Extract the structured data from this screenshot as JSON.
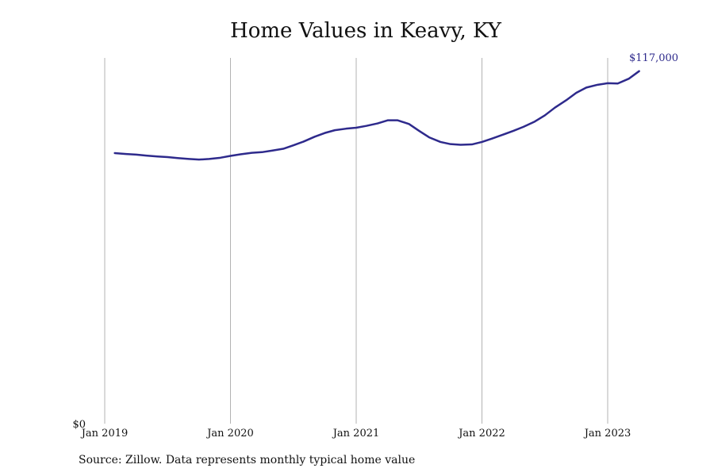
{
  "chart_data": {
    "type": "line",
    "title": "Home Values in Keavy, KY",
    "source": "Source: Zillow. Data represents monthly typical home value",
    "xlabel": "",
    "ylabel": "",
    "x_ticks": [
      {
        "label": "Jan 2019",
        "value": 2019.0
      },
      {
        "label": "Jan 2020",
        "value": 2020.0
      },
      {
        "label": "Jan 2021",
        "value": 2021.0
      },
      {
        "label": "Jan 2022",
        "value": 2022.0
      },
      {
        "label": "Jan 2023",
        "value": 2023.0
      }
    ],
    "xlim": [
      2018.92,
      2023.6
    ],
    "y_ticks": [
      {
        "label": "$0",
        "value": 0
      }
    ],
    "ylim": [
      0,
      117000
    ],
    "grid": {
      "x": true,
      "y": false
    },
    "end_label": "$117,000",
    "series": [
      {
        "color": "#2e2a8c",
        "points": [
          [
            2019.08,
            87500
          ],
          [
            2019.17,
            87200
          ],
          [
            2019.25,
            87000
          ],
          [
            2019.33,
            86700
          ],
          [
            2019.42,
            86400
          ],
          [
            2019.5,
            86200
          ],
          [
            2019.58,
            85900
          ],
          [
            2019.67,
            85600
          ],
          [
            2019.75,
            85400
          ],
          [
            2019.83,
            85600
          ],
          [
            2019.92,
            86000
          ],
          [
            2020.0,
            86600
          ],
          [
            2020.08,
            87100
          ],
          [
            2020.17,
            87600
          ],
          [
            2020.25,
            87800
          ],
          [
            2020.33,
            88300
          ],
          [
            2020.42,
            88900
          ],
          [
            2020.5,
            90000
          ],
          [
            2020.58,
            91200
          ],
          [
            2020.67,
            92800
          ],
          [
            2020.75,
            94000
          ],
          [
            2020.83,
            94900
          ],
          [
            2020.92,
            95400
          ],
          [
            2021.0,
            95700
          ],
          [
            2021.08,
            96300
          ],
          [
            2021.17,
            97100
          ],
          [
            2021.25,
            98100
          ],
          [
            2021.33,
            98100
          ],
          [
            2021.42,
            96900
          ],
          [
            2021.5,
            94700
          ],
          [
            2021.58,
            92600
          ],
          [
            2021.67,
            91100
          ],
          [
            2021.75,
            90400
          ],
          [
            2021.83,
            90200
          ],
          [
            2021.92,
            90300
          ],
          [
            2022.0,
            91100
          ],
          [
            2022.08,
            92200
          ],
          [
            2022.17,
            93500
          ],
          [
            2022.25,
            94700
          ],
          [
            2022.33,
            96000
          ],
          [
            2022.42,
            97700
          ],
          [
            2022.5,
            99700
          ],
          [
            2022.58,
            102200
          ],
          [
            2022.67,
            104600
          ],
          [
            2022.75,
            107000
          ],
          [
            2022.83,
            108700
          ],
          [
            2022.92,
            109600
          ],
          [
            2023.0,
            110100
          ],
          [
            2023.08,
            110000
          ],
          [
            2023.17,
            111600
          ],
          [
            2023.25,
            114000
          ]
        ]
      }
    ]
  }
}
